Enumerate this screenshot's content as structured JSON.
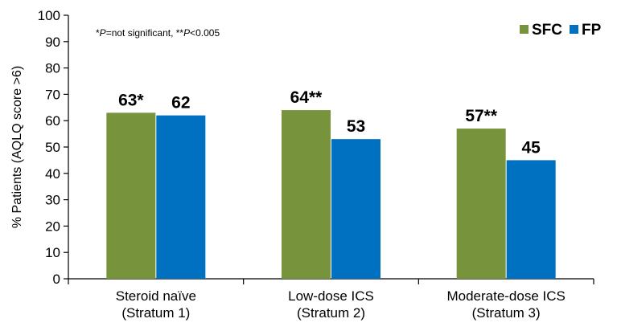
{
  "chart_data": {
    "type": "bar",
    "title": "",
    "xlabel": "",
    "ylabel": "% Patients (AQLQ score >6)",
    "ylim": [
      0,
      100
    ],
    "yticks": [
      0,
      10,
      20,
      30,
      40,
      50,
      60,
      70,
      80,
      90,
      100
    ],
    "grid": false,
    "legend_position": "top-right",
    "categories": [
      [
        "Steroid naïve",
        "(Stratum 1)"
      ],
      [
        "Low-dose ICS",
        "(Stratum 2)"
      ],
      [
        "Moderate-dose ICS",
        "(Stratum 3)"
      ]
    ],
    "series": [
      {
        "name": "SFC",
        "color": "#77933c",
        "values": [
          63,
          64,
          57
        ],
        "labels": [
          "63*",
          "64**",
          "57**"
        ]
      },
      {
        "name": "FP",
        "color": "#0070c0",
        "values": [
          62,
          53,
          45
        ],
        "labels": [
          "62",
          "53",
          "45"
        ]
      }
    ],
    "annotation": {
      "parts": [
        {
          "text": "*",
          "italic": false
        },
        {
          "text": "P",
          "italic": true
        },
        {
          "text": "=not significant, ",
          "italic": false
        },
        {
          "text": "**",
          "italic": false
        },
        {
          "text": "P",
          "italic": true
        },
        {
          "text": "<0.005",
          "italic": false
        }
      ]
    }
  }
}
